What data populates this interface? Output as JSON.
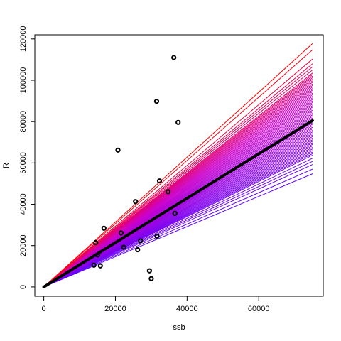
{
  "chart_data": {
    "type": "scatter",
    "xlabel": "ssb",
    "ylabel": "R",
    "xlim": [
      -2500,
      78000
    ],
    "ylim": [
      -4500,
      122000
    ],
    "x_ticks": [
      0,
      20000,
      40000,
      60000
    ],
    "x_tick_labels": [
      "0",
      "20000",
      "40000",
      "60000"
    ],
    "y_ticks": [
      0,
      20000,
      40000,
      60000,
      80000,
      100000,
      120000
    ],
    "y_tick_labels": [
      "0",
      "20000",
      "40000",
      "60000",
      "80000",
      "100000",
      "120000"
    ],
    "grid": false,
    "points": [
      {
        "x": 14000,
        "y": 10500
      },
      {
        "x": 14500,
        "y": 21500
      },
      {
        "x": 15000,
        "y": 15500
      },
      {
        "x": 15800,
        "y": 10200
      },
      {
        "x": 16800,
        "y": 28400
      },
      {
        "x": 20700,
        "y": 66200
      },
      {
        "x": 21600,
        "y": 26100
      },
      {
        "x": 22300,
        "y": 19200
      },
      {
        "x": 25600,
        "y": 41300
      },
      {
        "x": 26200,
        "y": 18000
      },
      {
        "x": 27000,
        "y": 22300
      },
      {
        "x": 29500,
        "y": 7800
      },
      {
        "x": 30000,
        "y": 4000
      },
      {
        "x": 31500,
        "y": 89800
      },
      {
        "x": 31600,
        "y": 24600
      },
      {
        "x": 32300,
        "y": 51300
      },
      {
        "x": 34700,
        "y": 46100
      },
      {
        "x": 36300,
        "y": 111000
      },
      {
        "x": 36600,
        "y": 35600
      },
      {
        "x": 37500,
        "y": 79600
      }
    ],
    "fit_line": {
      "x": [
        0,
        75000
      ],
      "y": [
        0,
        80500
      ],
      "color": "#000000"
    },
    "fan_lines": {
      "x_end": 75000,
      "slopes": [
        0.73,
        0.76,
        0.79,
        0.81,
        0.83,
        0.85,
        0.86,
        0.87,
        0.88,
        0.89,
        0.9,
        0.91,
        0.92,
        0.93,
        0.94,
        0.95,
        0.96,
        0.97,
        0.98,
        0.99,
        1.0,
        1.01,
        1.02,
        1.03,
        1.04,
        1.05,
        1.06,
        1.07,
        1.08,
        1.09,
        1.1,
        1.11,
        1.12,
        1.13,
        1.14,
        1.15,
        1.16,
        1.17,
        1.18,
        1.19,
        1.2,
        1.21,
        1.22,
        1.23,
        1.24,
        1.25,
        1.26,
        1.27,
        1.28,
        1.29,
        1.3,
        1.31,
        1.32,
        1.33,
        1.34,
        1.35,
        1.36,
        1.37,
        1.38,
        1.4,
        1.42,
        1.44,
        1.47,
        1.53,
        1.57
      ],
      "color_low": "#5b00ff",
      "color_mid": "#cc00cc",
      "color_high": "#ff0000"
    }
  }
}
